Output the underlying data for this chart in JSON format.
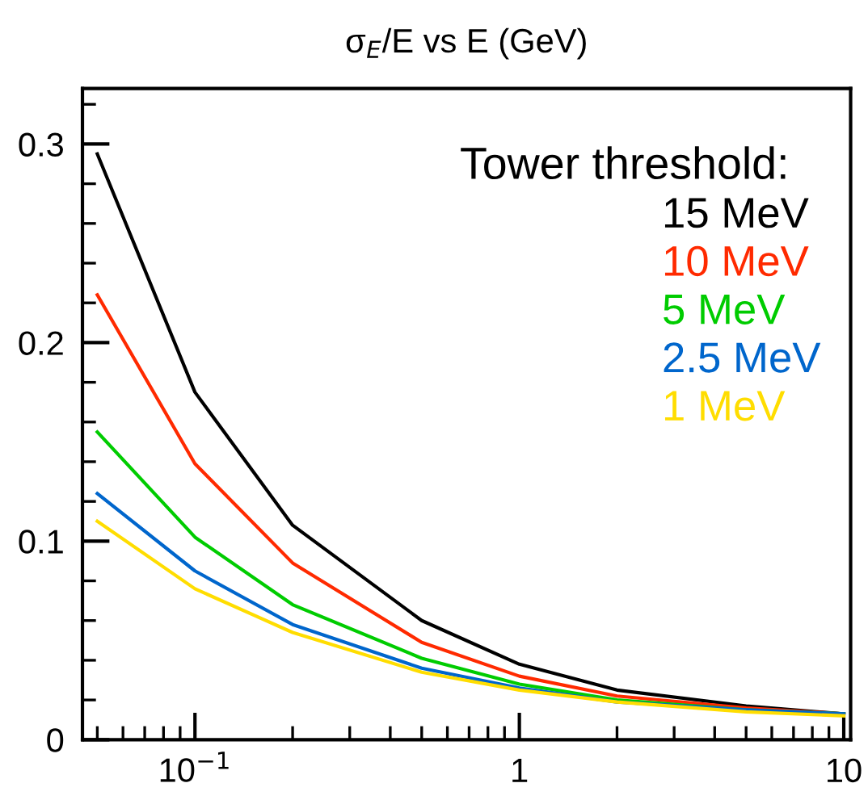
{
  "chart_data": {
    "type": "line",
    "title": "σ$_{E}$/E vs E (GeV)",
    "legend_title": "Tower threshold:",
    "x": [
      0.05,
      0.1,
      0.2,
      0.5,
      1,
      2,
      5,
      10
    ],
    "series": [
      {
        "name": "15 MeV",
        "color": "#000000",
        "values": [
          0.295,
          0.175,
          0.108,
          0.06,
          0.038,
          0.025,
          0.017,
          0.013
        ]
      },
      {
        "name": "10 MeV",
        "color": "#ff2a00",
        "values": [
          0.224,
          0.139,
          0.089,
          0.049,
          0.032,
          0.022,
          0.016,
          0.013
        ]
      },
      {
        "name": "5 MeV",
        "color": "#00cc00",
        "values": [
          0.155,
          0.102,
          0.068,
          0.041,
          0.028,
          0.02,
          0.015,
          0.013
        ]
      },
      {
        "name": "2.5 MeV",
        "color": "#0066cc",
        "values": [
          0.124,
          0.085,
          0.058,
          0.036,
          0.026,
          0.019,
          0.015,
          0.013
        ]
      },
      {
        "name": "1 MeV",
        "color": "#ffdd00",
        "values": [
          0.11,
          0.076,
          0.054,
          0.034,
          0.025,
          0.019,
          0.014,
          0.012
        ]
      }
    ],
    "log": "x",
    "xlim": [
      0.045,
      10.5
    ],
    "ylim": [
      0,
      0.328
    ],
    "xticks": [
      {
        "value": 0.1,
        "label": "10$^{−1}$"
      },
      1,
      10
    ],
    "yticks": [
      0,
      0.1,
      0.2,
      0.3
    ],
    "grid": false,
    "legend": "top right",
    "marker": "none",
    "line_style": "solid"
  }
}
